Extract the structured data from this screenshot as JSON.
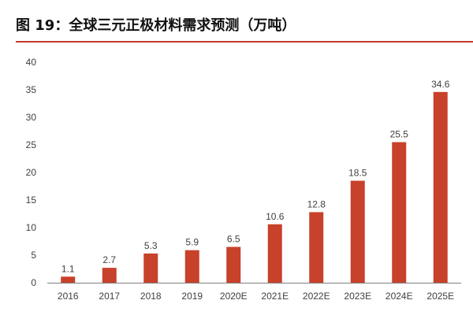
{
  "title": "图 19：全球三元正极材料需求预测（万吨）",
  "colors": {
    "bar": "#c8412a",
    "axis": "#808080",
    "title_rule": "#c0392b"
  },
  "chart_data": {
    "type": "bar",
    "title": "图 19：全球三元正极材料需求预测（万吨）",
    "categories": [
      "2016",
      "2017",
      "2018",
      "2019",
      "2020E",
      "2021E",
      "2022E",
      "2023E",
      "2024E",
      "2025E"
    ],
    "values": [
      1.1,
      2.7,
      5.3,
      5.9,
      6.5,
      10.6,
      12.8,
      18.5,
      25.5,
      34.6
    ],
    "data_labels": [
      "1.1",
      "2.7",
      "5.3",
      "5.9",
      "6.5",
      "10.6",
      "12.8",
      "18.5",
      "25.5",
      "34.6"
    ],
    "yticks": [
      0,
      5,
      10,
      15,
      20,
      25,
      30,
      35,
      40
    ],
    "ylim": [
      0,
      40
    ],
    "xlabel": "",
    "ylabel": "",
    "grid": false,
    "legend": "none"
  }
}
